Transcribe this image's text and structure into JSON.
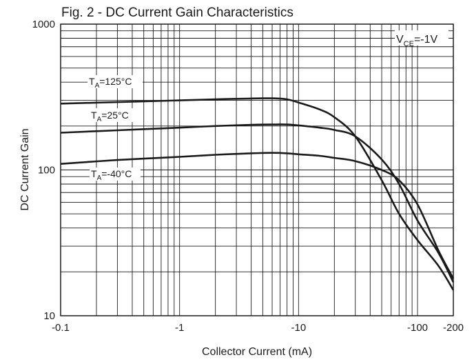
{
  "chart_data": {
    "type": "line",
    "title": "Fig. 2 - DC Current Gain Characteristics",
    "xlabel": "Collector Current (mA)",
    "ylabel": "DC Current Gain",
    "x_scale": "log",
    "y_scale": "log",
    "xlim": [
      0.1,
      200
    ],
    "ylim": [
      10,
      1000
    ],
    "x_ticks": [
      {
        "value": 0.1,
        "label": "-0.1"
      },
      {
        "value": 1,
        "label": "-1"
      },
      {
        "value": 10,
        "label": "-10"
      },
      {
        "value": 100,
        "label": "-100"
      },
      {
        "value": 200,
        "label": "-200"
      }
    ],
    "y_ticks": [
      {
        "value": 10,
        "label": "10"
      },
      {
        "value": 100,
        "label": "100"
      },
      {
        "value": 1000,
        "label": "1000"
      }
    ],
    "grid": true,
    "condition": {
      "main": "V",
      "sub": "CE",
      "tail": "=-1V"
    },
    "series": [
      {
        "name": "TA=125°C",
        "label_parts": {
          "main": "T",
          "sub": "A",
          "tail": "=125°C"
        },
        "x": [
          0.1,
          0.3,
          1,
          2,
          4,
          6,
          8,
          10,
          15,
          20,
          30,
          50,
          70,
          100,
          150,
          200
        ],
        "y": [
          285,
          292,
          300,
          305,
          309,
          310,
          305,
          290,
          260,
          230,
          170,
          85,
          50,
          33,
          22,
          15
        ]
      },
      {
        "name": "TA=25°C",
        "label_parts": {
          "main": "T",
          "sub": "A",
          "tail": "=25°C"
        },
        "x": [
          0.1,
          0.3,
          1,
          2,
          4,
          6,
          8,
          10,
          15,
          20,
          30,
          50,
          70,
          100,
          150,
          200
        ],
        "y": [
          180,
          187,
          195,
          200,
          204,
          205,
          205,
          202,
          195,
          188,
          170,
          118,
          80,
          45,
          27,
          17
        ]
      },
      {
        "name": "TA=-40°C",
        "label_parts": {
          "main": "T",
          "sub": "A",
          "tail": "=-40°C"
        },
        "x": [
          0.1,
          0.3,
          1,
          2,
          4,
          6,
          8,
          10,
          15,
          20,
          30,
          50,
          70,
          100,
          150,
          200
        ],
        "y": [
          110,
          117,
          123,
          127,
          130,
          131,
          130,
          128,
          125,
          121,
          115,
          100,
          85,
          58,
          28,
          18
        ]
      }
    ]
  }
}
